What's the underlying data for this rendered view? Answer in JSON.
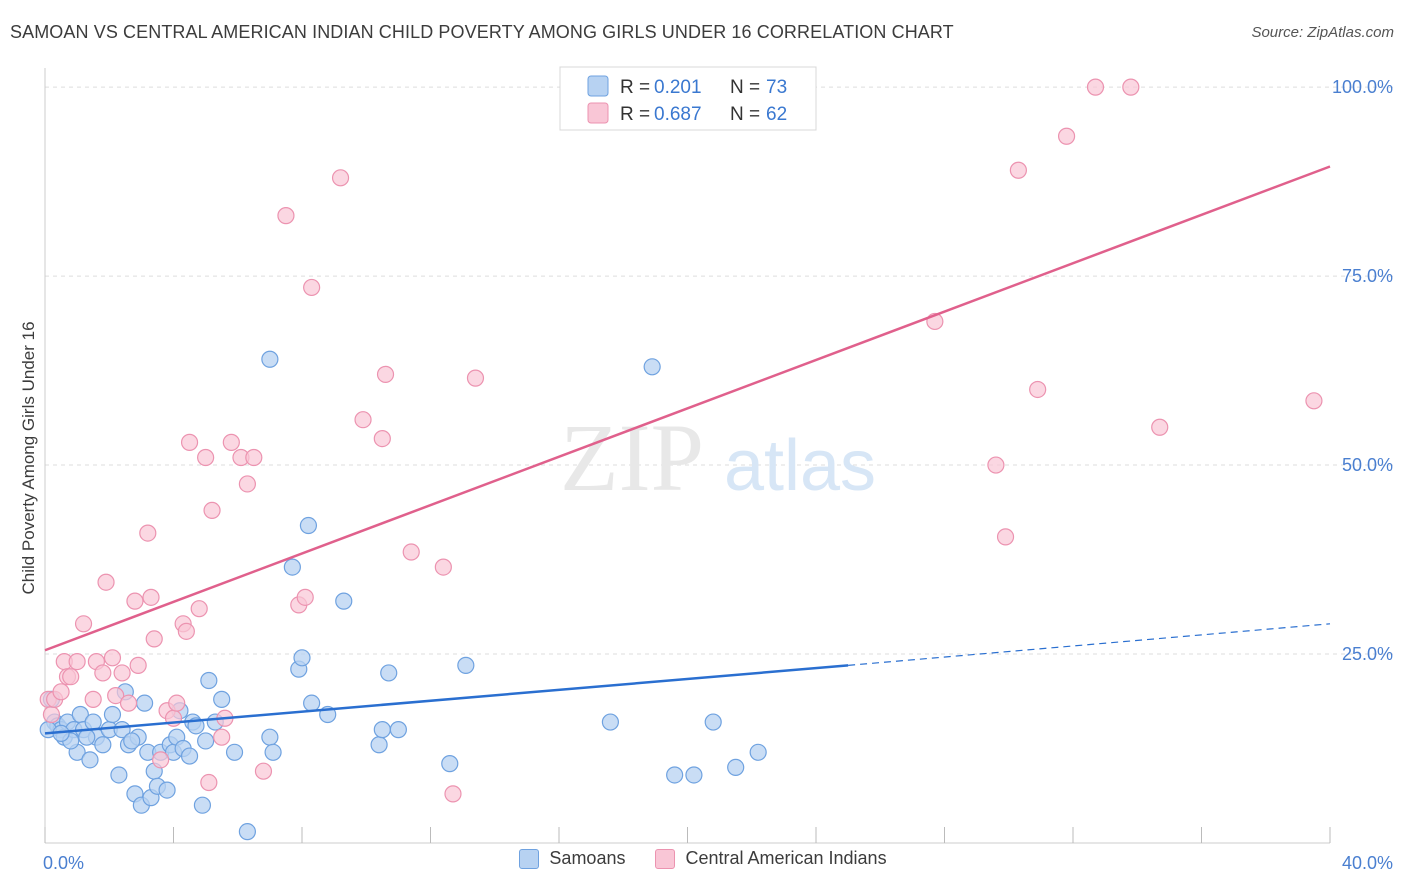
{
  "title": "SAMOAN VS CENTRAL AMERICAN INDIAN CHILD POVERTY AMONG GIRLS UNDER 16 CORRELATION CHART",
  "source": "Source: ZipAtlas.com",
  "watermark": {
    "zip": "ZIP",
    "atlas": "atlas"
  },
  "legend_top": [
    {
      "r_label": "R =",
      "r_value": "0.201",
      "n_label": "N =",
      "n_value": "73"
    },
    {
      "r_label": "R =",
      "r_value": "0.687",
      "n_label": "N =",
      "n_value": "62"
    }
  ],
  "legend_bottom": [
    "Samoans",
    "Central American Indians"
  ],
  "colors": {
    "samoans_fill": "#b7d2f2",
    "samoans_stroke": "#6fa2e0",
    "samoans_line": "#2a6fd0",
    "cai_fill": "#f9c6d6",
    "cai_stroke": "#ec93b0",
    "cai_line": "#e0608c",
    "axis_text": "#4a7fd0",
    "grid": "#dddddd"
  },
  "chart_data": {
    "type": "scatter",
    "title": "SAMOAN VS CENTRAL AMERICAN INDIAN CHILD POVERTY AMONG GIRLS UNDER 16 CORRELATION CHART",
    "xlabel": "",
    "ylabel": "Child Poverty Among Girls Under 16",
    "xlim": [
      0,
      40
    ],
    "ylim": [
      0,
      102
    ],
    "x_tick_labels": [
      "0.0%",
      "40.0%"
    ],
    "y_ticks": [
      25,
      50,
      75,
      100
    ],
    "y_tick_labels": [
      "25.0%",
      "50.0%",
      "75.0%",
      "100.0%"
    ],
    "grid": true,
    "legend_placement": "top-center",
    "series": [
      {
        "name": "Samoans",
        "R": 0.201,
        "N": 73,
        "trend": {
          "x0": 0,
          "y0": 14.5,
          "x1": 25,
          "y1": 23.5,
          "dashed_to_x": 40,
          "dashed_to_y": 29.0
        },
        "points": [
          [
            0.2,
            19
          ],
          [
            0.3,
            16
          ],
          [
            0.4,
            15.5
          ],
          [
            0.5,
            15
          ],
          [
            0.6,
            14
          ],
          [
            0.7,
            16
          ],
          [
            0.9,
            15
          ],
          [
            1.0,
            12
          ],
          [
            1.1,
            17
          ],
          [
            1.2,
            15
          ],
          [
            1.4,
            11
          ],
          [
            1.5,
            16
          ],
          [
            1.6,
            14
          ],
          [
            1.8,
            13
          ],
          [
            2.0,
            15
          ],
          [
            2.1,
            17
          ],
          [
            2.3,
            9
          ],
          [
            2.4,
            15
          ],
          [
            2.5,
            20
          ],
          [
            2.6,
            13
          ],
          [
            2.8,
            6.5
          ],
          [
            2.9,
            14
          ],
          [
            3.0,
            5
          ],
          [
            3.1,
            18.5
          ],
          [
            3.2,
            12
          ],
          [
            3.3,
            6
          ],
          [
            3.4,
            9.5
          ],
          [
            3.5,
            7.5
          ],
          [
            3.6,
            12
          ],
          [
            3.8,
            7
          ],
          [
            3.9,
            13
          ],
          [
            4.0,
            12
          ],
          [
            4.1,
            14
          ],
          [
            4.2,
            17.5
          ],
          [
            4.3,
            12.5
          ],
          [
            4.5,
            11.5
          ],
          [
            4.6,
            16
          ],
          [
            4.7,
            15.5
          ],
          [
            4.9,
            5
          ],
          [
            5.0,
            13.5
          ],
          [
            5.1,
            21.5
          ],
          [
            5.3,
            16
          ],
          [
            5.5,
            19
          ],
          [
            5.9,
            12
          ],
          [
            6.3,
            1.5
          ],
          [
            7.0,
            14
          ],
          [
            7.1,
            12
          ],
          [
            7.0,
            64
          ],
          [
            7.7,
            36.5
          ],
          [
            7.9,
            23
          ],
          [
            8.0,
            24.5
          ],
          [
            8.2,
            42
          ],
          [
            8.3,
            18.5
          ],
          [
            8.8,
            17
          ],
          [
            9.3,
            32
          ],
          [
            10.4,
            13
          ],
          [
            10.5,
            15
          ],
          [
            10.7,
            22.5
          ],
          [
            11.0,
            15
          ],
          [
            12.6,
            10.5
          ],
          [
            13.1,
            23.5
          ],
          [
            17.6,
            16
          ],
          [
            18.9,
            63
          ],
          [
            19.6,
            9
          ],
          [
            20.2,
            9
          ],
          [
            20.8,
            16
          ],
          [
            21.5,
            10
          ],
          [
            22.2,
            12
          ],
          [
            0.8,
            13.5
          ],
          [
            1.3,
            14
          ],
          [
            2.7,
            13.5
          ],
          [
            0.1,
            15
          ],
          [
            0.5,
            14.5
          ]
        ]
      },
      {
        "name": "Central American Indians",
        "R": 0.687,
        "N": 62,
        "trend": {
          "x0": 0,
          "y0": 25.5,
          "x1": 40,
          "y1": 89.5
        },
        "points": [
          [
            0.1,
            19
          ],
          [
            0.2,
            17
          ],
          [
            0.3,
            19
          ],
          [
            0.5,
            20
          ],
          [
            0.6,
            24
          ],
          [
            0.7,
            22
          ],
          [
            0.8,
            22
          ],
          [
            1.0,
            24
          ],
          [
            1.2,
            29
          ],
          [
            1.5,
            19
          ],
          [
            1.6,
            24
          ],
          [
            1.8,
            22.5
          ],
          [
            1.9,
            34.5
          ],
          [
            2.1,
            24.5
          ],
          [
            2.2,
            19.5
          ],
          [
            2.4,
            22.5
          ],
          [
            2.6,
            18.5
          ],
          [
            2.8,
            32
          ],
          [
            2.9,
            23.5
          ],
          [
            3.2,
            41
          ],
          [
            3.3,
            32.5
          ],
          [
            3.4,
            27
          ],
          [
            3.6,
            11
          ],
          [
            3.8,
            17.5
          ],
          [
            4.0,
            16.5
          ],
          [
            4.1,
            18.5
          ],
          [
            4.3,
            29
          ],
          [
            4.4,
            28
          ],
          [
            4.5,
            53
          ],
          [
            4.8,
            31
          ],
          [
            5.0,
            51
          ],
          [
            5.1,
            8
          ],
          [
            5.2,
            44
          ],
          [
            5.5,
            14
          ],
          [
            5.6,
            16.5
          ],
          [
            5.8,
            53
          ],
          [
            6.1,
            51
          ],
          [
            6.3,
            47.5
          ],
          [
            6.5,
            51
          ],
          [
            6.8,
            9.5
          ],
          [
            7.5,
            83
          ],
          [
            7.9,
            31.5
          ],
          [
            8.1,
            32.5
          ],
          [
            8.3,
            73.5
          ],
          [
            9.2,
            88
          ],
          [
            9.9,
            56
          ],
          [
            10.5,
            53.5
          ],
          [
            10.6,
            62
          ],
          [
            11.4,
            38.5
          ],
          [
            12.4,
            36.5
          ],
          [
            12.7,
            6.5
          ],
          [
            13.4,
            61.5
          ],
          [
            27.7,
            69
          ],
          [
            29.6,
            50
          ],
          [
            29.9,
            40.5
          ],
          [
            30.3,
            89
          ],
          [
            30.9,
            60
          ],
          [
            31.8,
            93.5
          ],
          [
            32.7,
            100
          ],
          [
            33.8,
            100
          ],
          [
            34.7,
            55
          ],
          [
            39.5,
            58.5
          ]
        ]
      }
    ]
  }
}
